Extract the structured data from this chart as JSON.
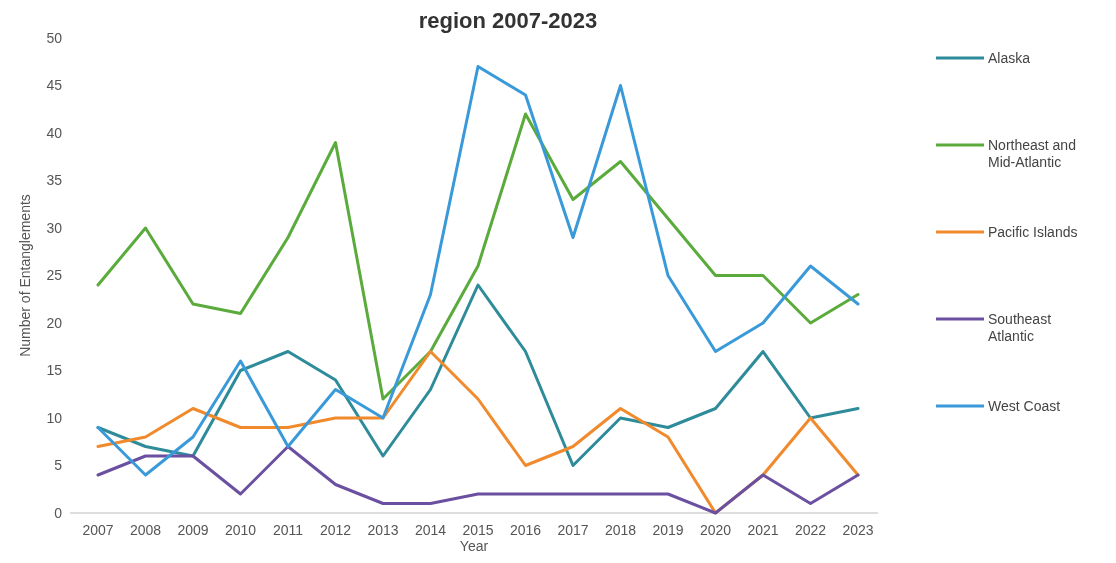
{
  "chart_data": {
    "type": "line",
    "title": "region 2007-2023",
    "xlabel": "Year",
    "ylabel": "Number of Entanglements",
    "categories": [
      "2007",
      "2008",
      "2009",
      "2010",
      "2011",
      "2012",
      "2013",
      "2014",
      "2015",
      "2016",
      "2017",
      "2018",
      "2019",
      "2020",
      "2021",
      "2022",
      "2023"
    ],
    "series": [
      {
        "name": "Alaska",
        "color": "#2e8b9a",
        "values": [
          9,
          7,
          6,
          15,
          17,
          14,
          6,
          13,
          24,
          17,
          5,
          10,
          9,
          11,
          17,
          10,
          11
        ]
      },
      {
        "name": "Northeast and Mid-Atlantic",
        "color": "#5aab3c",
        "values": [
          24,
          30,
          22,
          21,
          29,
          39,
          12,
          17,
          26,
          42,
          33,
          37,
          31,
          25,
          25,
          20,
          23
        ]
      },
      {
        "name": "Pacific Islands",
        "color": "#f08a2c",
        "values": [
          7,
          8,
          11,
          9,
          9,
          10,
          10,
          17,
          12,
          5,
          7,
          11,
          8,
          0,
          4,
          10,
          4
        ]
      },
      {
        "name": "Southeast Atlantic",
        "color": "#6b4fa0",
        "values": [
          4,
          6,
          6,
          2,
          7,
          3,
          1,
          1,
          2,
          2,
          2,
          2,
          2,
          0,
          4,
          1,
          4
        ]
      },
      {
        "name": "West Coast",
        "color": "#3a9ad9",
        "values": [
          9,
          4,
          8,
          16,
          7,
          13,
          10,
          23,
          47,
          44,
          29,
          45,
          25,
          17,
          20,
          26,
          22
        ]
      }
    ],
    "ylim": [
      0,
      50
    ],
    "yticks": [
      0,
      5,
      10,
      15,
      20,
      25,
      30,
      35,
      40,
      45,
      50
    ],
    "grid": false,
    "legend": "right",
    "marker": "none",
    "line_style": "solid"
  }
}
